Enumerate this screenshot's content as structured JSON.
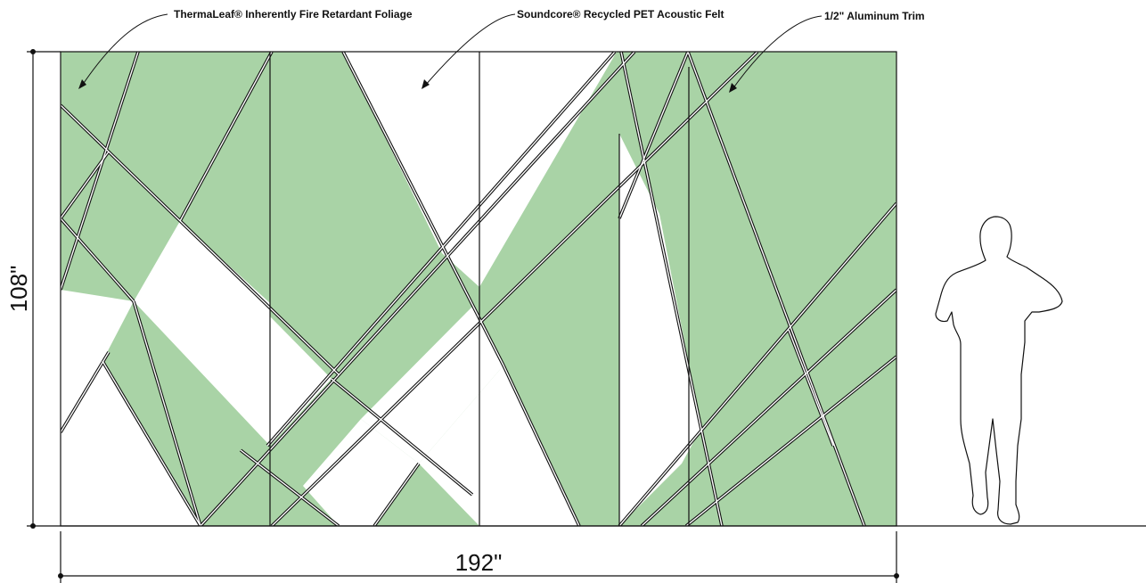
{
  "callouts": {
    "foliage": "ThermaLeaf® Inherently Fire Retardant Foliage",
    "felt": "Soundcore® Recycled PET Acoustic Felt",
    "trim": "1/2\" Aluminum Trim"
  },
  "dimensions": {
    "width": "192\"",
    "height": "108\""
  },
  "colors": {
    "foliage": "#a9d3a6",
    "felt": "#ffffff",
    "line": "#111111"
  }
}
